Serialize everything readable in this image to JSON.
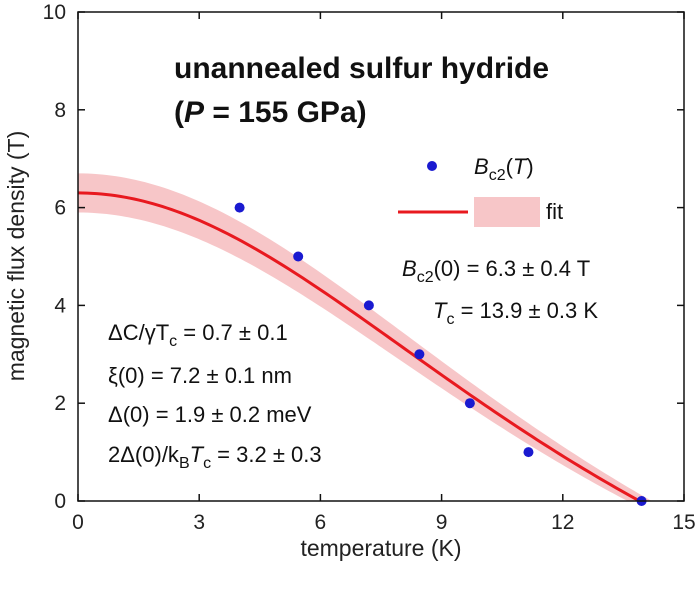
{
  "chart_data": {
    "type": "scatter",
    "title_line1": "unannealed sulfur hydride",
    "title_line2_italic": "P",
    "title_line2_rest": " = 155 GPa",
    "xlabel": "temperature (K)",
    "ylabel": "magnetic flux density (T)",
    "xlim": [
      0,
      15
    ],
    "ylim": [
      0,
      10
    ],
    "xticks": [
      0,
      3,
      6,
      9,
      12,
      15
    ],
    "yticks": [
      0,
      2,
      4,
      6,
      8,
      10
    ],
    "series": [
      {
        "kind": "points",
        "color": "#1a1ad0",
        "x": [
          4.0,
          5.45,
          7.2,
          8.45,
          9.7,
          11.15,
          13.95
        ],
        "y": [
          6.0,
          5.0,
          4.0,
          3.0,
          2.0,
          1.0,
          0.0
        ]
      },
      {
        "kind": "fit-line",
        "color": "#e8191f",
        "band_color": "#f7c6c8",
        "Bc2_0": 6.3,
        "Bc2_0_err": 0.4,
        "Tc": 13.9,
        "Tc_err": 0.3
      }
    ],
    "legend": {
      "position": "top-right",
      "points_label_main": "B",
      "points_label_sub": "c2",
      "points_label_tail": "(T)",
      "fit_label": "fit"
    },
    "fit_results": {
      "bc2_main": "B",
      "bc2_sub": "c2",
      "bc2_tail": "(0) = 6.3 ± 0.4 T",
      "tc_main": "T",
      "tc_sub": "c",
      "tc_tail": " = 13.9 ± 0.3 K"
    },
    "parameters": {
      "p1_a": "ΔC/γT",
      "p1_sub": "c",
      "p1_b": " = 0.7 ± 0.1",
      "p2": "ξ(0) = 7.2 ± 0.1 nm",
      "p3": "Δ(0) = 1.9 ± 0.2 meV",
      "p4_a": "2Δ(0)/k",
      "p4_sub1": "B",
      "p4_b": "T",
      "p4_sub2": "c",
      "p4_c": " = 3.2 ± 0.3"
    }
  }
}
